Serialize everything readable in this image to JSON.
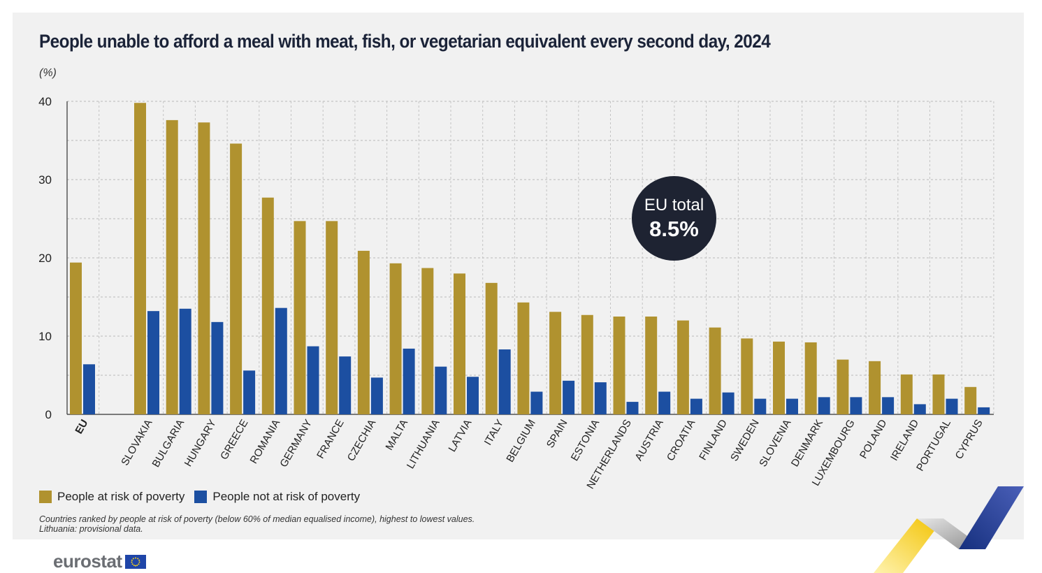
{
  "title": "People unable to afford a meal with meat, fish, or vegetarian equivalent every second day, 2024",
  "unit": "(%)",
  "bubble": {
    "label": "EU total",
    "value": "8.5%"
  },
  "legend": [
    {
      "label": "People at risk of poverty",
      "color": "#b0922f"
    },
    {
      "label": "People not at risk of poverty",
      "color": "#1c4fa1"
    }
  ],
  "notes": [
    "Countries ranked by people at risk of poverty (below 60% of median equalised income), highest to lowest values.",
    "Lithuania: provisional data."
  ],
  "logo": {
    "text": "eurostat"
  },
  "chart_data": {
    "type": "bar",
    "categories": [
      "EU",
      "SLOVAKIA",
      "BULGARIA",
      "HUNGARY",
      "GREECE",
      "ROMANIA",
      "GERMANY",
      "FRANCE",
      "CZECHIA",
      "MALTA",
      "LITHUANIA",
      "LATVIA",
      "ITALY",
      "BELGIUM",
      "SPAIN",
      "ESTONIA",
      "NETHERLANDS",
      "AUSTRIA",
      "CROATIA",
      "FINLAND",
      "SWEDEN",
      "SLOVENIA",
      "DENMARK",
      "LUXEMBOURG",
      "POLAND",
      "IRELAND",
      "PORTUGAL",
      "CYPRUS"
    ],
    "series": [
      {
        "name": "People at risk of poverty",
        "color": "#b0922f",
        "values": [
          19.4,
          39.8,
          37.6,
          37.3,
          34.6,
          27.7,
          24.7,
          24.7,
          20.9,
          19.3,
          18.7,
          18.0,
          16.8,
          14.3,
          13.1,
          12.7,
          12.5,
          12.5,
          12.0,
          11.1,
          9.7,
          9.3,
          9.2,
          7.0,
          6.8,
          5.1,
          5.1,
          3.5
        ]
      },
      {
        "name": "People not at risk of poverty",
        "color": "#1c4fa1",
        "values": [
          6.4,
          13.2,
          13.5,
          11.8,
          5.6,
          13.6,
          8.7,
          7.4,
          4.7,
          8.4,
          6.1,
          4.8,
          8.3,
          2.9,
          4.3,
          4.1,
          1.6,
          2.9,
          2.0,
          2.8,
          2.0,
          2.0,
          2.2,
          2.2,
          2.2,
          1.3,
          2.0,
          0.9
        ]
      }
    ],
    "yticks": [
      0,
      10,
      20,
      30,
      40
    ],
    "ylim": [
      0,
      40
    ],
    "grid": true,
    "legend_position": "bottom-left"
  }
}
